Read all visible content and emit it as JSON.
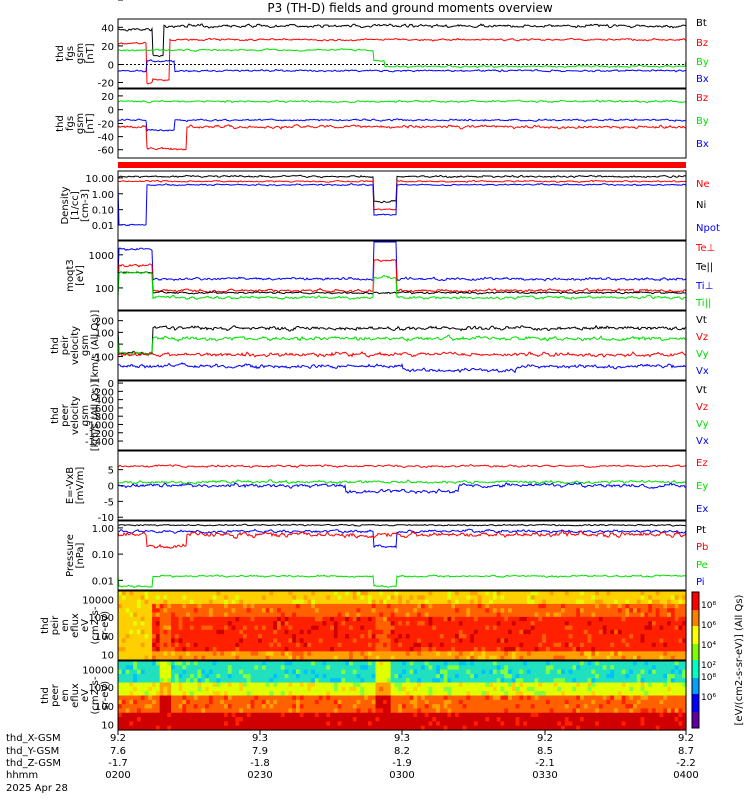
{
  "title": "P3 (TH-D) fields and ground moments overview",
  "colors": {
    "black": "#000000",
    "red": "#ff0000",
    "green": "#00e000",
    "blue": "#0000ff"
  },
  "chart_data": [
    {
      "type": "line",
      "ylabel": [
        "thd",
        "fgs",
        "gsm",
        "[nT]"
      ],
      "yticks": [
        "40",
        "20",
        "0",
        "-20"
      ],
      "ylim": [
        -25,
        50
      ],
      "legend": [
        {
          "label": "Bt",
          "color": "black"
        },
        {
          "label": "Bz",
          "color": "red"
        },
        {
          "label": "By",
          "color": "green"
        },
        {
          "label": "Bx",
          "color": "blue"
        }
      ]
    },
    {
      "type": "line",
      "ylabel": [
        "thd",
        "fgs",
        "gsm",
        "[nT]"
      ],
      "yticks": [
        "20",
        "0",
        "-20",
        "-40",
        "-60"
      ],
      "ylim": [
        -75,
        30
      ],
      "legend": [
        {
          "label": "Bz",
          "color": "red"
        },
        {
          "label": "By",
          "color": "green"
        },
        {
          "label": "Bx",
          "color": "blue"
        }
      ]
    },
    {
      "type": "line",
      "ylabel": [
        "Density",
        "[1/cc]",
        "[cm-3]"
      ],
      "yticks": [
        "10.00",
        "1.00",
        "0.10",
        "0.01"
      ],
      "log": true,
      "legend": [
        {
          "label": "Ne",
          "color": "red"
        },
        {
          "label": "Ni",
          "color": "black"
        },
        {
          "label": "Npot",
          "color": "blue"
        }
      ]
    },
    {
      "type": "line",
      "ylabel": [
        "moqt3",
        "[eV]"
      ],
      "yticks": [
        "1000",
        "100"
      ],
      "log": true,
      "legend": [
        {
          "label": "Te⊥",
          "color": "red"
        },
        {
          "label": "Te||",
          "color": "black"
        },
        {
          "label": "Ti⊥",
          "color": "blue"
        },
        {
          "label": "Ti||",
          "color": "green"
        }
      ]
    },
    {
      "type": "line",
      "ylabel": [
        "thd",
        "peir",
        "velocity",
        "gsm",
        "[km/s (All Qs)]"
      ],
      "yticks": [
        "200",
        "100",
        "0",
        "-100"
      ],
      "ylim": [
        -150,
        280
      ],
      "legend": [
        {
          "label": "Vt",
          "color": "black"
        },
        {
          "label": "Vz",
          "color": "red"
        },
        {
          "label": "Vy",
          "color": "green"
        },
        {
          "label": "Vx",
          "color": "blue"
        }
      ]
    },
    {
      "type": "line",
      "ylabel": [
        "thd",
        "peer",
        "velocity",
        "gsm",
        "[km/s (All Qs)]"
      ],
      "yticks": [
        "0",
        "-200",
        "-400",
        "-600",
        "-800",
        "-1000",
        "-1200",
        "-1400"
      ],
      "ylim": [
        -1500,
        0
      ],
      "legend": [
        {
          "label": "Vt",
          "color": "black"
        },
        {
          "label": "Vz",
          "color": "red"
        },
        {
          "label": "Vy",
          "color": "green"
        },
        {
          "label": "Vx",
          "color": "blue"
        }
      ]
    },
    {
      "type": "line",
      "ylabel": [
        "E=-VxB",
        "[mV/m]"
      ],
      "yticks": [
        "5",
        "0",
        "-5",
        "-10",
        "-15"
      ],
      "ylim": [
        -15,
        7
      ],
      "legend": [
        {
          "label": "Ez",
          "color": "red"
        },
        {
          "label": "Ey",
          "color": "green"
        },
        {
          "label": "Ex",
          "color": "blue"
        }
      ]
    },
    {
      "type": "line",
      "ylabel": [
        "Pressure",
        "[nPa]"
      ],
      "yticks": [
        "1.00",
        "0.10",
        "0.01"
      ],
      "log": true,
      "legend": [
        {
          "label": "Pt",
          "color": "black"
        },
        {
          "label": "Pb",
          "color": "red"
        },
        {
          "label": "Pe",
          "color": "green"
        },
        {
          "label": "Pi",
          "color": "blue"
        }
      ]
    },
    {
      "type": "heatmap",
      "ylabel": [
        "thd",
        "peir",
        "en",
        "eflux",
        "eV",
        "(cm2-s-",
        "sr-eV)"
      ],
      "yticks": [
        "10000",
        "1000",
        "100",
        "10"
      ]
    },
    {
      "type": "heatmap",
      "ylabel": [
        "thd",
        "peer",
        "en",
        "eflux",
        "eV",
        "(cm2-s-",
        "sr-eV)"
      ],
      "yticks": [
        "10000",
        "1000",
        "100",
        "10"
      ]
    }
  ],
  "colorbar": {
    "label": "[eV/(cm2-s-sr-eV)] (All Qs)",
    "ticks": [
      "10⁸",
      "10⁶",
      "10⁴",
      "10²",
      "10⁸",
      "10⁶",
      "10⁴",
      "10²"
    ]
  },
  "xaxis": {
    "row_labels": [
      "thd_X-GSM",
      "thd_Y-GSM",
      "thd_Z-GSM",
      "hhmm",
      "2025 Apr 28"
    ],
    "ticks": [
      {
        "x": "9.2",
        "y": "7.6",
        "z": "-1.7",
        "t": "0200"
      },
      {
        "x": "9.3",
        "y": "7.9",
        "z": "-1.8",
        "t": "0230"
      },
      {
        "x": "9.3",
        "y": "8.2",
        "z": "-1.9",
        "t": "0300"
      },
      {
        "x": "9.2",
        "y": "8.5",
        "z": "-2.1",
        "t": "0330"
      },
      {
        "x": "9.2",
        "y": "8.7",
        "z": "-2.2",
        "t": "0400"
      }
    ]
  }
}
